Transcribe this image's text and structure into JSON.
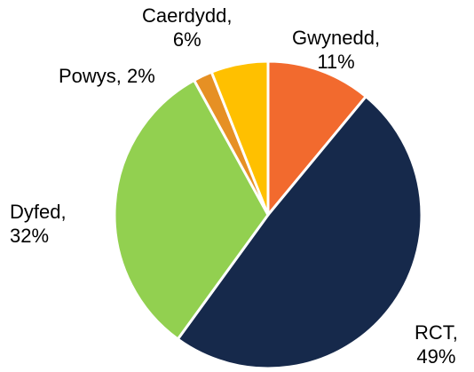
{
  "chart_data": {
    "type": "pie",
    "start_angle_deg": 0,
    "direction": "clockwise",
    "slices": [
      {
        "name": "Gwynedd",
        "value": 11,
        "label_pct": "11%",
        "color": "#F26A2E"
      },
      {
        "name": "RCT",
        "value": 49,
        "label_pct": "49%",
        "color": "#16294B"
      },
      {
        "name": "Dyfed",
        "value": 32,
        "label_pct": "32%",
        "color": "#92D050"
      },
      {
        "name": "Powys",
        "value": 2,
        "label_pct": "2%",
        "color": "#E69024"
      },
      {
        "name": "Caerdydd",
        "value": 6,
        "label_pct": "6%",
        "color": "#FFC000"
      }
    ],
    "labels": {
      "gwynedd": {
        "name": "Gwynedd,",
        "pct": "11%"
      },
      "rct": {
        "name": "RCT,",
        "pct": "49%"
      },
      "dyfed": {
        "name": "Dyfed,",
        "pct": "32%"
      },
      "powys": {
        "name": "Powys, 2%"
      },
      "caerdydd": {
        "name": "Caerdydd,",
        "pct": "6%"
      }
    }
  }
}
